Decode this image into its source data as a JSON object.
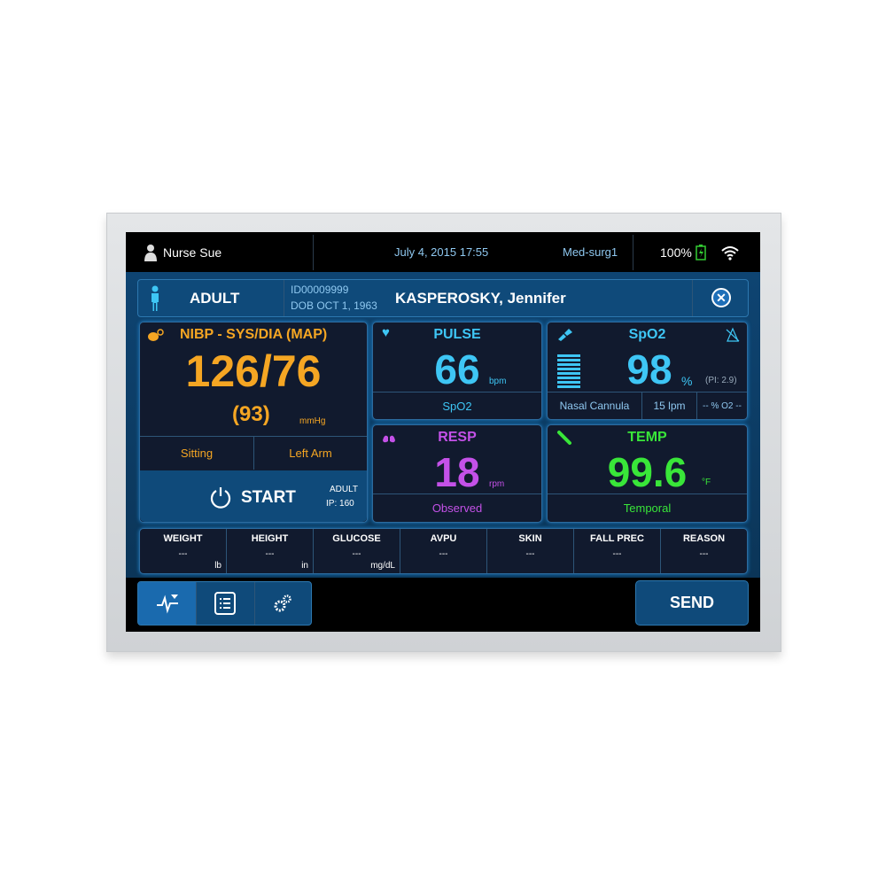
{
  "status_bar": {
    "user": "Nurse Sue",
    "datetime": "July 4, 2015  17:55",
    "unit": "Med-surg1",
    "battery": "100%"
  },
  "patient": {
    "type": "ADULT",
    "id": "ID00009999",
    "dob": "DOB OCT 1, 1963",
    "name": "KASPEROSKY, Jennifer"
  },
  "nibp": {
    "title": "NIBP - SYS/DIA (MAP)",
    "value": "126/76",
    "map": "(93)",
    "unit": "mmHg",
    "position": "Sitting",
    "site": "Left Arm",
    "start_label": "START",
    "mode": "ADULT",
    "ip": "IP:  160",
    "color": "#f5a623"
  },
  "pulse": {
    "title": "PULSE",
    "value": "66",
    "unit": "bpm",
    "source": "SpO2",
    "color": "#3ec6f5"
  },
  "spo2": {
    "title": "SpO2",
    "value": "98",
    "unit": "%",
    "pi": "(PI: 2.9)",
    "delivery": "Nasal Cannula",
    "flow": "15 lpm",
    "o2": "-- % O2 --",
    "signal_level": 1.0,
    "color": "#3ec6f5"
  },
  "resp": {
    "title": "RESP",
    "value": "18",
    "unit": "rpm",
    "method": "Observed",
    "color": "#c451e8"
  },
  "temp": {
    "title": "TEMP",
    "value": "99.6",
    "unit": "°F",
    "site": "Temporal",
    "color": "#39e639"
  },
  "extras": [
    {
      "label": "WEIGHT",
      "value": "---",
      "unit": "lb"
    },
    {
      "label": "HEIGHT",
      "value": "---",
      "unit": "in"
    },
    {
      "label": "GLUCOSE",
      "value": "---",
      "unit": "mg/dL"
    },
    {
      "label": "AVPU",
      "value": "---",
      "unit": ""
    },
    {
      "label": "SKIN",
      "value": "---",
      "unit": ""
    },
    {
      "label": "FALL PREC",
      "value": "---",
      "unit": ""
    },
    {
      "label": "REASON",
      "value": "---",
      "unit": ""
    }
  ],
  "nav": {
    "send_label": "SEND"
  }
}
